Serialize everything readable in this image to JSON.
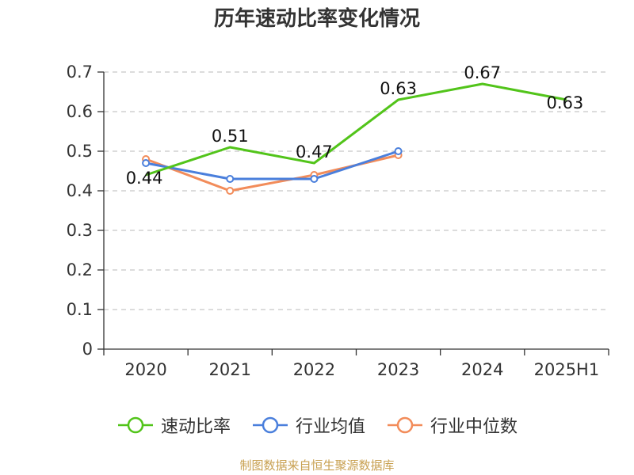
{
  "chart_data": {
    "type": "line",
    "title": "历年速动比率变化情况",
    "categories": [
      "2020",
      "2021",
      "2022",
      "2023",
      "2024",
      "2025H1"
    ],
    "ylim": [
      0,
      0.7
    ],
    "yticks": [
      "0",
      "0.1",
      "0.2",
      "0.3",
      "0.4",
      "0.5",
      "0.6",
      "0.7"
    ],
    "grid": true,
    "legend_position": "bottom",
    "series": [
      {
        "name": "速动比率",
        "color": "#52c41a",
        "values": [
          0.44,
          0.51,
          0.47,
          0.63,
          0.67,
          0.63
        ],
        "labels": [
          "0.44",
          "0.51",
          "0.47",
          "0.63",
          "0.67",
          "0.63"
        ]
      },
      {
        "name": "行业均值",
        "color": "#4a7fdc",
        "values": [
          0.47,
          0.43,
          0.43,
          0.5,
          null,
          null
        ]
      },
      {
        "name": "行业中位数",
        "color": "#f28c5a",
        "values": [
          0.48,
          0.4,
          0.44,
          0.49,
          null,
          null
        ]
      }
    ]
  },
  "source": "制图数据来自恒生聚源数据库"
}
